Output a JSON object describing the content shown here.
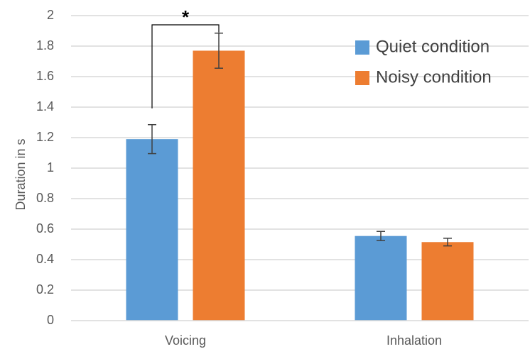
{
  "chart_data": {
    "type": "bar",
    "categories": [
      "Voicing",
      "Inhalation"
    ],
    "series": [
      {
        "name": "Quiet condition",
        "color": "#5B9BD5",
        "values": [
          1.19,
          0.555
        ],
        "error": [
          0.095,
          0.03
        ]
      },
      {
        "name": "Noisy condition",
        "color": "#ED7D31",
        "values": [
          1.77,
          0.515
        ],
        "error": [
          0.115,
          0.025
        ]
      }
    ],
    "ylabel": "Duration in s",
    "xlabel": "",
    "ylim": [
      0,
      2
    ],
    "yticks": [
      0,
      0.2,
      0.4,
      0.6,
      0.8,
      1,
      1.2,
      1.4,
      1.6,
      1.8,
      2
    ],
    "ytick_labels": [
      "0",
      "0.2",
      "0.4",
      "0.6",
      "0.8",
      "1",
      "1.2",
      "1.4",
      "1.6",
      "1.8",
      "2"
    ],
    "grid": true,
    "legend_position": "top-right",
    "annotations": [
      {
        "text": "*",
        "type": "significance-bracket",
        "category": "Voicing"
      }
    ]
  }
}
